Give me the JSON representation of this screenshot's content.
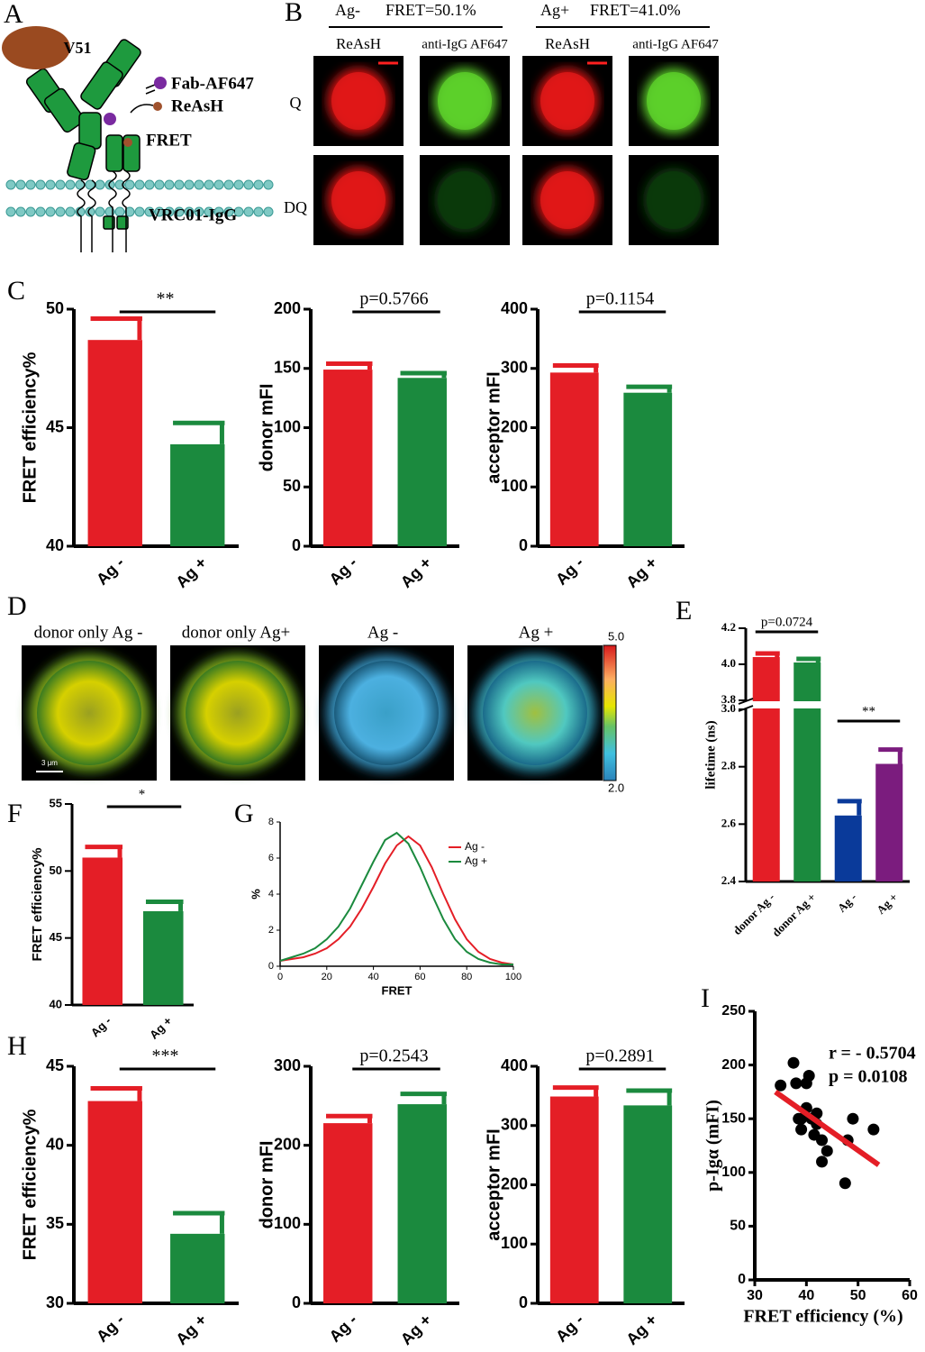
{
  "panel_labels": [
    "A",
    "B",
    "C",
    "D",
    "E",
    "F",
    "G",
    "H",
    "I"
  ],
  "panel_a": {
    "labels": [
      "V51",
      "Fab-AF647",
      "ReAsH",
      "FRET",
      "VRC01-IgG"
    ]
  },
  "panel_b": {
    "groups": [
      {
        "name": "Ag-",
        "fret": "FRET=50.1%"
      },
      {
        "name": "Ag+",
        "fret": "FRET=41.0%"
      }
    ],
    "columns": [
      "ReAsH",
      "anti-IgG AF647",
      "ReAsH",
      "anti-IgG AF647"
    ],
    "rows": [
      "Q",
      "DQ"
    ]
  },
  "panel_d": {
    "columns": [
      "donor only Ag -",
      "donor only Ag+",
      "Ag -",
      "Ag +"
    ],
    "colorbar": [
      "5.0",
      "2.0"
    ],
    "scale_bar": "3 μm"
  },
  "chart_data": [
    {
      "type": "bar",
      "ylabel": "FRET efficiency%",
      "categories": [
        "Ag -",
        "Ag +"
      ],
      "values": [
        48.7,
        44.3
      ],
      "errors": [
        0.9,
        0.9
      ],
      "colors": [
        "#e41e26",
        "#1b8a3e"
      ],
      "ylim": [
        40,
        50
      ],
      "yticks": [
        40,
        45,
        50
      ],
      "annotations": [
        "**"
      ]
    },
    {
      "type": "bar",
      "ylabel": "donor mFI",
      "categories": [
        "Ag -",
        "Ag +"
      ],
      "values": [
        149,
        142
      ],
      "errors": [
        5,
        4
      ],
      "colors": [
        "#e41e26",
        "#1b8a3e"
      ],
      "ylim": [
        0,
        200
      ],
      "yticks": [
        0,
        50,
        100,
        150,
        200
      ],
      "annotations": [
        "p=0.5766"
      ]
    },
    {
      "type": "bar",
      "ylabel": "acceptor mFI",
      "categories": [
        "Ag -",
        "Ag +"
      ],
      "values": [
        293,
        259
      ],
      "errors": [
        12,
        10
      ],
      "colors": [
        "#e41e26",
        "#1b8a3e"
      ],
      "ylim": [
        0,
        400
      ],
      "yticks": [
        0,
        100,
        200,
        300,
        400
      ],
      "annotations": [
        "p=0.1154"
      ]
    },
    {
      "type": "broken-bar",
      "ylabel": "lifetime (ns)",
      "categories": [
        "donor Ag -",
        "donor Ag +",
        "Ag -",
        "Ag +"
      ],
      "values": [
        4.04,
        4.01,
        2.63,
        2.81
      ],
      "errors": [
        0.02,
        0.02,
        0.05,
        0.05
      ],
      "colors": [
        "#e41e26",
        "#1b8a3e",
        "#0a3a9a",
        "#7b1c7e"
      ],
      "ylim": [
        2.4,
        4.2
      ],
      "axis_break": [
        3.0,
        3.8
      ],
      "yticks": [
        2.4,
        2.6,
        2.8,
        {
          "value": 3.0,
          "label": "3.0"
        },
        3.8,
        {
          "value": 4.0,
          "label": "4.0"
        },
        4.2
      ],
      "annotations": [
        "p=0.0724",
        "**"
      ]
    },
    {
      "type": "bar",
      "ylabel": "FRET efficiency%",
      "categories": [
        "Ag -",
        "Ag +"
      ],
      "values": [
        51.0,
        47.0
      ],
      "errors": [
        0.8,
        0.7
      ],
      "colors": [
        "#e41e26",
        "#1b8a3e"
      ],
      "ylim": [
        40,
        55
      ],
      "yticks": [
        40,
        45,
        50,
        55
      ],
      "annotations": [
        "*"
      ]
    },
    {
      "type": "line",
      "xlabel": "FRET",
      "ylabel": "%",
      "legend": "upper right",
      "x": [
        0,
        5,
        10,
        15,
        20,
        25,
        30,
        35,
        40,
        45,
        50,
        55,
        60,
        65,
        70,
        75,
        80,
        85,
        90,
        95,
        100
      ],
      "series": [
        {
          "name": "Ag -",
          "color": "#e41e26",
          "values": [
            0.3,
            0.4,
            0.5,
            0.7,
            1.0,
            1.5,
            2.2,
            3.2,
            4.4,
            5.7,
            6.7,
            7.2,
            6.7,
            5.5,
            4.0,
            2.6,
            1.5,
            0.8,
            0.4,
            0.2,
            0.1
          ]
        },
        {
          "name": "Ag +",
          "color": "#1b8a3e",
          "values": [
            0.3,
            0.5,
            0.7,
            1.0,
            1.5,
            2.2,
            3.2,
            4.5,
            5.8,
            7.0,
            7.4,
            6.8,
            5.5,
            4.0,
            2.6,
            1.5,
            0.8,
            0.4,
            0.2,
            0.1,
            0.1
          ]
        }
      ],
      "xlim": [
        0,
        100
      ],
      "xticks": [
        0,
        20,
        40,
        60,
        80,
        100
      ],
      "ylim": [
        0,
        8
      ],
      "yticks": [
        0,
        2,
        4,
        6,
        8
      ]
    },
    {
      "type": "bar",
      "ylabel": "FRET efficiency%",
      "categories": [
        "Ag -",
        "Ag +"
      ],
      "values": [
        42.8,
        34.4
      ],
      "errors": [
        0.8,
        1.3
      ],
      "colors": [
        "#e41e26",
        "#1b8a3e"
      ],
      "ylim": [
        30,
        45
      ],
      "yticks": [
        30,
        35,
        40,
        45
      ],
      "annotations": [
        "***"
      ]
    },
    {
      "type": "bar",
      "ylabel": "donor mFI",
      "categories": [
        "Ag -",
        "Ag +"
      ],
      "values": [
        228,
        252
      ],
      "errors": [
        9,
        13
      ],
      "colors": [
        "#e41e26",
        "#1b8a3e"
      ],
      "ylim": [
        0,
        300
      ],
      "yticks": [
        0,
        100,
        200,
        300
      ],
      "annotations": [
        "p=0.2543"
      ]
    },
    {
      "type": "bar",
      "ylabel": "acceptor mFI",
      "categories": [
        "Ag -",
        "Ag +"
      ],
      "values": [
        349,
        334
      ],
      "errors": [
        15,
        25
      ],
      "colors": [
        "#e41e26",
        "#1b8a3e"
      ],
      "ylim": [
        0,
        400
      ],
      "yticks": [
        0,
        100,
        200,
        300,
        400
      ],
      "annotations": [
        "p=0.2891"
      ]
    },
    {
      "type": "scatter",
      "xlabel": "FRET efficiency (%)",
      "ylabel": "p-Igα  (mFI)",
      "color": "#000000",
      "x": [
        35,
        37.5,
        38,
        38.5,
        39,
        39,
        40,
        40,
        40.5,
        41,
        41.5,
        42,
        42,
        43,
        43,
        44,
        47.5,
        48,
        49,
        53
      ],
      "y": [
        181,
        202,
        183,
        150,
        150,
        140,
        183,
        160,
        190,
        150,
        135,
        155,
        145,
        130,
        110,
        120,
        90,
        130,
        150,
        140
      ],
      "fit_line": {
        "x": [
          34,
          54
        ],
        "y": [
          175,
          107
        ],
        "color": "#e41e26"
      },
      "xlim": [
        30,
        60
      ],
      "xticks": [
        30,
        40,
        50,
        60
      ],
      "ylim": [
        0,
        250
      ],
      "yticks": [
        0,
        50,
        100,
        150,
        200,
        250
      ],
      "annotations": [
        "r = - 0.5704",
        "p = 0.0108"
      ]
    }
  ]
}
